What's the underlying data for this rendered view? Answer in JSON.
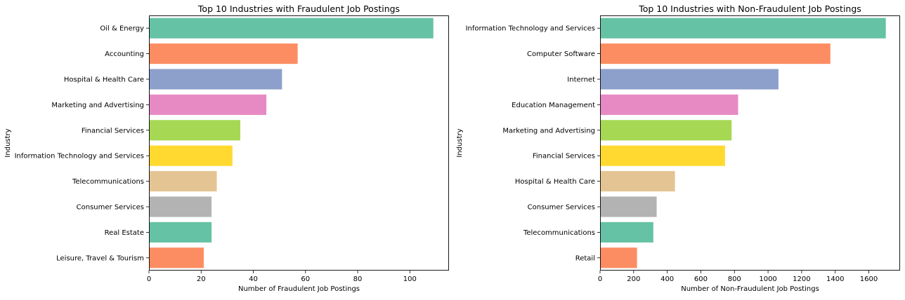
{
  "chart_data": [
    {
      "type": "bar",
      "orientation": "horizontal",
      "title": "Top 10 Industries with Fraudulent Job Postings",
      "xlabel": "Number of Fraudulent Job Postings",
      "ylabel": "Industry",
      "xlim": [
        0,
        115
      ],
      "xticks": [
        0,
        20,
        40,
        60,
        80,
        100
      ],
      "grid": false,
      "categories": [
        "Oil & Energy",
        "Accounting",
        "Hospital & Health Care",
        "Marketing and Advertising",
        "Financial Services",
        "Information Technology and Services",
        "Telecommunications",
        "Consumer Services",
        "Real Estate",
        "Leisure, Travel & Tourism"
      ],
      "values": [
        109,
        57,
        51,
        45,
        35,
        32,
        26,
        24,
        24,
        21
      ]
    },
    {
      "type": "bar",
      "orientation": "horizontal",
      "title": "Top 10 Industries with Non-Fraudulent Job Postings",
      "xlabel": "Number of Non-Fraudulent Job Postings",
      "ylabel": "Industry",
      "xlim": [
        0,
        1786
      ],
      "xticks": [
        0,
        200,
        400,
        600,
        800,
        1000,
        1200,
        1400,
        1600
      ],
      "grid": false,
      "categories": [
        "Information Technology and Services",
        "Computer Software",
        "Internet",
        "Education Management",
        "Marketing and Advertising",
        "Financial Services",
        "Hospital & Health Care",
        "Consumer Services",
        "Telecommunications",
        "Retail"
      ],
      "values": [
        1701,
        1371,
        1062,
        822,
        783,
        744,
        446,
        337,
        317,
        220
      ]
    }
  ],
  "palette": [
    "#66c2a5",
    "#fc8d62",
    "#8da0cb",
    "#e78ac3",
    "#a6d854",
    "#ffd92f",
    "#e5c494",
    "#b3b3b3"
  ]
}
